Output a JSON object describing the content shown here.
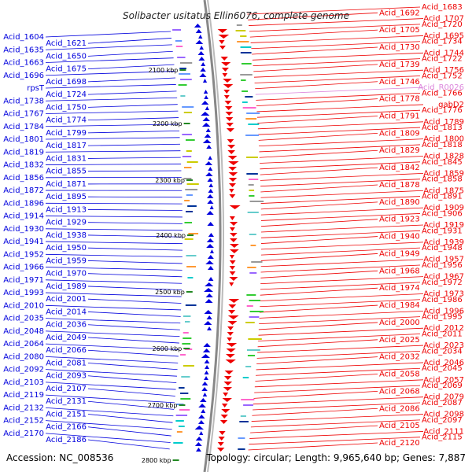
{
  "title": "Solibacter usitatus Ellin6076, complete genome",
  "footer": {
    "accession": "Accession: NC_008536",
    "topology": "Topology: circular; Length: 9,965,640 bp; Genes: 7,887"
  },
  "colors": {
    "plus_strand": "#0000dd",
    "minus_strand": "#ee0000",
    "rna_gene": "#dd88dd",
    "backbone": "#888888",
    "tick": "#228822"
  },
  "ticks": [
    "2100 kbp",
    "2200 kbp",
    "2300 kbp",
    "2400 kbp",
    "2500 kbp",
    "2600 kbp",
    "2700 kbp",
    "2800 kbp"
  ],
  "left_labels": [
    "Acid_1604",
    "Acid_1621",
    "Acid_1635",
    "Acid_1650",
    "Acid_1663",
    "Acid_1675",
    "Acid_1696",
    "Acid_1698",
    "rpsT",
    "Acid_1724",
    "Acid_1738",
    "Acid_1750",
    "Acid_1767",
    "Acid_1774",
    "Acid_1784",
    "Acid_1799",
    "Acid_1801",
    "Acid_1817",
    "Acid_1819",
    "Acid_1831",
    "Acid_1832",
    "Acid_1855",
    "Acid_1856",
    "Acid_1871",
    "Acid_1872",
    "Acid_1895",
    "Acid_1896",
    "Acid_1913",
    "Acid_1914",
    "Acid_1929",
    "Acid_1930",
    "Acid_1938",
    "Acid_1941",
    "Acid_1950",
    "Acid_1952",
    "Acid_1959",
    "Acid_1966",
    "Acid_1970",
    "Acid_1971",
    "Acid_1989",
    "Acid_1993",
    "Acid_2001",
    "Acid_2010",
    "Acid_2014",
    "Acid_2035",
    "Acid_2036",
    "Acid_2048",
    "Acid_2049",
    "Acid_2064",
    "Acid_2066",
    "Acid_2080",
    "Acid_2081",
    "Acid_2092",
    "Acid_2093",
    "Acid_2103",
    "Acid_2107",
    "Acid_2119",
    "Acid_2131",
    "Acid_2132",
    "Acid_2151",
    "Acid_2152",
    "Acid_2166",
    "Acid_2170",
    "Acid_2186"
  ],
  "right_labels": [
    "Acid_1683",
    "Acid_1692",
    "Acid_1707",
    "Acid_1720",
    "Acid_1705",
    "Acid_1695",
    "Acid_1734",
    "Acid_1730",
    "Acid_1744",
    "Acid_1722",
    "Acid_1739",
    "Acid_1756",
    "Acid_1752",
    "Acid_1746",
    "Acid_R0026",
    "Acid_1766",
    "Acid_1778",
    "gabD2",
    "Acid_1776",
    "Acid_1791",
    "Acid_1789",
    "Acid_1813",
    "Acid_1809",
    "Acid_1800",
    "Acid_1818",
    "Acid_1829",
    "Acid_1828",
    "Acid_1845",
    "Acid_1842",
    "Acid_1859",
    "Acid_1858",
    "Acid_1878",
    "Acid_1875",
    "Acid_1891",
    "Acid_1890",
    "Acid_1909",
    "Acid_1906",
    "Acid_1923",
    "Acid_1919",
    "Acid_1931",
    "Acid_1940",
    "Acid_1939",
    "Acid_1948",
    "Acid_1949",
    "Acid_1957",
    "Acid_1956",
    "Acid_1968",
    "Acid_1967",
    "Acid_1972",
    "Acid_1974",
    "Acid_1973",
    "Acid_1986",
    "Acid_1984",
    "Acid_1996",
    "Acid_1995",
    "Acid_2000",
    "Acid_2012",
    "Acid_2011",
    "Acid_2025",
    "Acid_2023",
    "Acid_2034",
    "Acid_2032",
    "Acid_2046",
    "Acid_2045",
    "Acid_2058",
    "Acid_2057",
    "Acid_2069",
    "Acid_2068",
    "Acid_2079",
    "Acid_2087",
    "Acid_2086",
    "Acid_2098",
    "Acid_2097",
    "Acid_2105",
    "Acid_2111",
    "Acid_2115",
    "Acid_2120"
  ]
}
